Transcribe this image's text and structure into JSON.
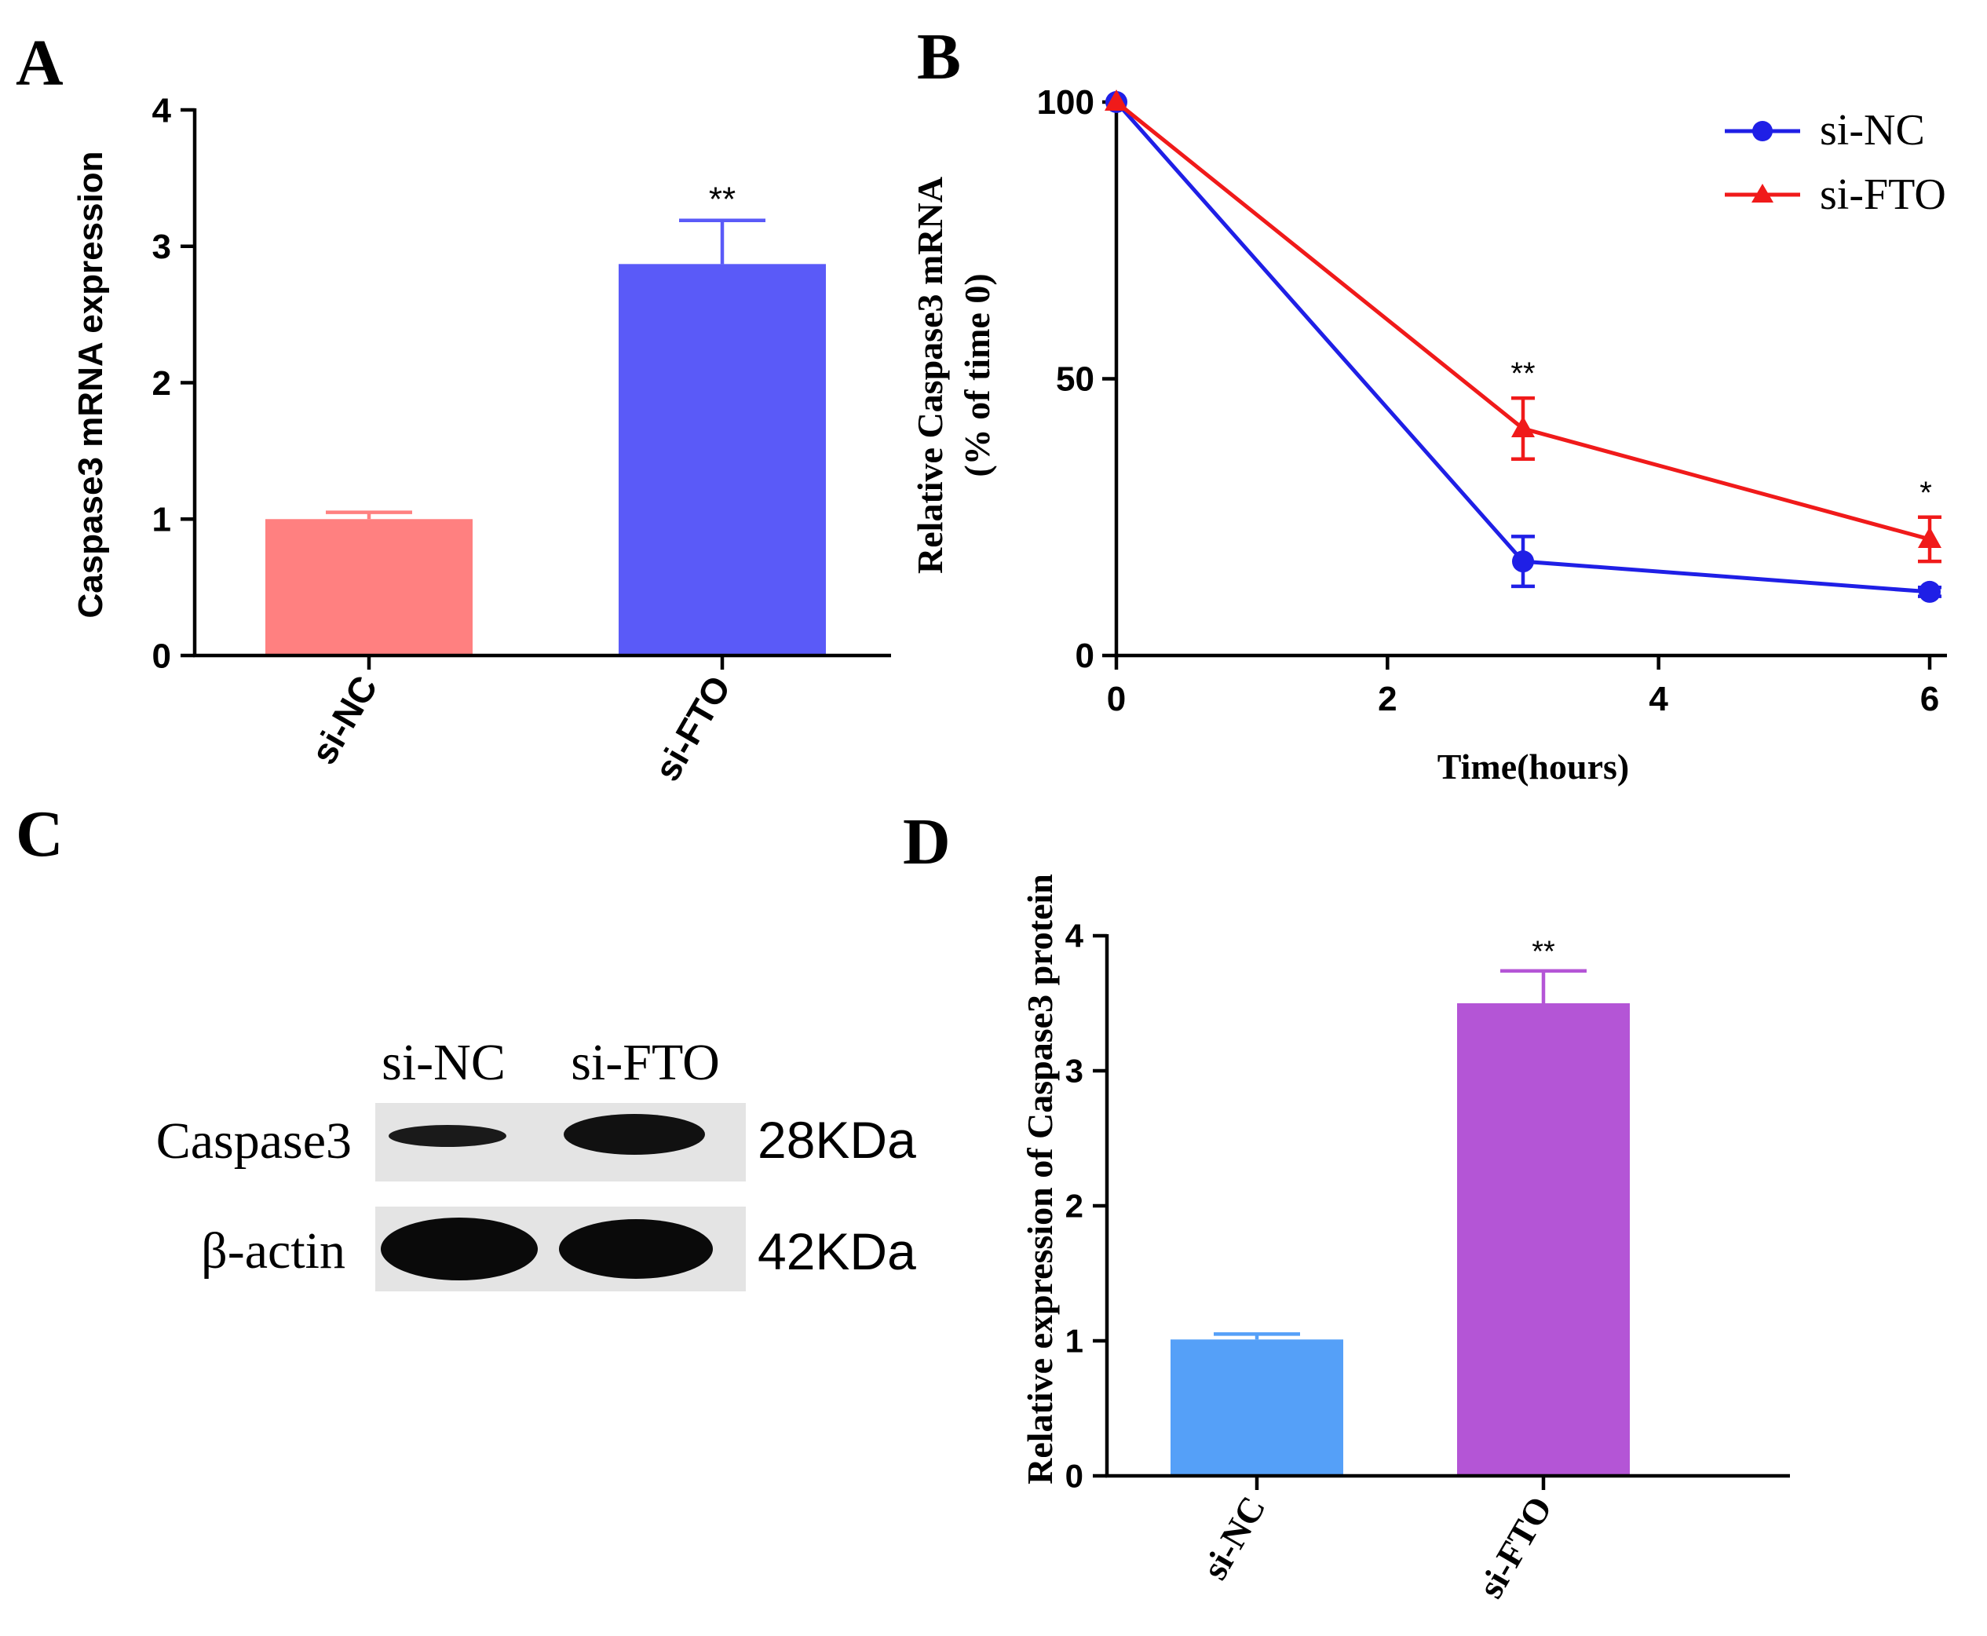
{
  "panels": {
    "a": "A",
    "b": "B",
    "c": "C",
    "d": "D"
  },
  "chart_data": [
    {
      "id": "A",
      "type": "bar",
      "title": "",
      "xlabel": "",
      "ylabel": "Caspase3 mRNA expression",
      "ylim": [
        0,
        4
      ],
      "yticks": [
        "0",
        "1",
        "2",
        "3",
        "4"
      ],
      "categories": [
        "si-NC",
        "si-FTO"
      ],
      "values": [
        1.0,
        2.87
      ],
      "errors": [
        0.05,
        0.32
      ],
      "annotations": [
        "",
        "**"
      ],
      "colors": [
        "#ff8080",
        "#5a5af8"
      ]
    },
    {
      "id": "B",
      "type": "line",
      "title": "",
      "xlabel": "Time(hours)",
      "ylabel": [
        "Relative Caspase3 mRNA",
        "(% of time 0)"
      ],
      "xlim": [
        0,
        6
      ],
      "ylim": [
        0,
        100
      ],
      "xticks": [
        "0",
        "2",
        "4",
        "6"
      ],
      "yticks": [
        "0",
        "50",
        "100"
      ],
      "x": [
        0,
        3,
        6
      ],
      "series": [
        {
          "name": "si-NC",
          "values": [
            100,
            17,
            11.5
          ],
          "errors": [
            0,
            4.5,
            0.8
          ],
          "color": "#1f1fe6",
          "marker": "circle"
        },
        {
          "name": "si-FTO",
          "values": [
            100,
            41,
            21
          ],
          "errors": [
            0,
            5.5,
            4
          ],
          "color": "#f01a1a",
          "marker": "triangle"
        }
      ],
      "annotations": [
        {
          "x": 3,
          "text": "**"
        },
        {
          "x": 6,
          "text": "*"
        }
      ],
      "legend": "top-right"
    },
    {
      "id": "D",
      "type": "bar",
      "title": "",
      "xlabel": "",
      "ylabel": "Relative expression of Caspase3 protein",
      "ylim": [
        0,
        4
      ],
      "yticks": [
        "0",
        "1",
        "2",
        "3",
        "4"
      ],
      "categories": [
        "si-NC",
        "si-FTO"
      ],
      "values": [
        1.01,
        3.5
      ],
      "errors": [
        0.04,
        0.24
      ],
      "annotations": [
        "",
        "**"
      ],
      "colors": [
        "#55a0f8",
        "#b455d6"
      ]
    }
  ],
  "western_blot": {
    "lanes": [
      "si-NC",
      "si-FTO"
    ],
    "rows": [
      {
        "label": "Caspase3",
        "size": "28KDa"
      },
      {
        "label": "β-actin",
        "size": "42KDa"
      }
    ]
  }
}
